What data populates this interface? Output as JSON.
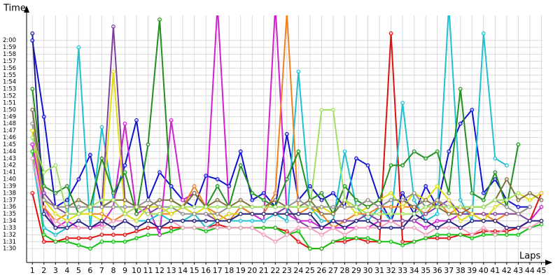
{
  "chart_data": {
    "type": "line",
    "y_label": "Time",
    "x_label": "Laps",
    "xlim": [
      0.5,
      45.7
    ],
    "ylim": [
      88,
      123
    ],
    "xticks": [
      1,
      2,
      3,
      4,
      5,
      6,
      7,
      8,
      9,
      10,
      11,
      12,
      13,
      14,
      15,
      16,
      17,
      18,
      19,
      20,
      21,
      22,
      23,
      24,
      25,
      26,
      27,
      28,
      29,
      30,
      31,
      32,
      33,
      34,
      35,
      36,
      37,
      38,
      39,
      40,
      41,
      42,
      43,
      44,
      45
    ],
    "yticks": [
      {
        "value": 90,
        "label": "1:30"
      },
      {
        "value": 91,
        "label": "1:31"
      },
      {
        "value": 92,
        "label": "1:32"
      },
      {
        "value": 93,
        "label": "1:33"
      },
      {
        "value": 94,
        "label": "1:34"
      },
      {
        "value": 95,
        "label": "1:35"
      },
      {
        "value": 96,
        "label": "1:36"
      },
      {
        "value": 97,
        "label": "1:37"
      },
      {
        "value": 98,
        "label": "1:38"
      },
      {
        "value": 99,
        "label": "1:39"
      },
      {
        "value": 100,
        "label": "1:40"
      },
      {
        "value": 101,
        "label": "1:41"
      },
      {
        "value": 102,
        "label": "1:42"
      },
      {
        "value": 103,
        "label": "1:43"
      },
      {
        "value": 104,
        "label": "1:44"
      },
      {
        "value": 105,
        "label": "1:45"
      },
      {
        "value": 106,
        "label": "1:46"
      },
      {
        "value": 107,
        "label": "1:47"
      },
      {
        "value": 108,
        "label": "1:48"
      },
      {
        "value": 109,
        "label": "1:49"
      },
      {
        "value": 110,
        "label": "1:50"
      },
      {
        "value": 111,
        "label": "1:51"
      },
      {
        "value": 112,
        "label": "1:52"
      },
      {
        "value": 113,
        "label": "1:53"
      },
      {
        "value": 114,
        "label": "1:54"
      },
      {
        "value": 115,
        "label": "1:55"
      },
      {
        "value": 116,
        "label": "1:56"
      },
      {
        "value": 117,
        "label": "1:57"
      },
      {
        "value": 118,
        "label": "1:58"
      },
      {
        "value": 119,
        "label": "1:59"
      },
      {
        "value": 120,
        "label": "2:00"
      }
    ],
    "grid": true,
    "series": [
      {
        "color": "#e01010",
        "values": [
          98,
          91,
          91,
          91.5,
          91.5,
          91.5,
          92,
          92,
          92,
          92.5,
          93,
          93,
          93,
          93,
          93,
          93,
          93.5,
          93,
          93,
          93,
          93,
          93,
          92.5,
          91,
          90,
          90,
          91,
          91,
          91.5,
          91,
          91,
          121,
          91,
          91,
          91.5,
          91.5,
          91.5,
          92,
          92,
          92.5,
          92.5,
          92.5,
          93,
          94,
          98
        ]
      },
      {
        "color": "#1010d0",
        "values": [
          120,
          109,
          96,
          97,
          100,
          103.5,
          96,
          97,
          102,
          108.5,
          97,
          101,
          99,
          97,
          96,
          100.5,
          100,
          99,
          104,
          97,
          98,
          96,
          106.5,
          97,
          99,
          97,
          98,
          96,
          103,
          102,
          97,
          94,
          98,
          95,
          99,
          96,
          104,
          108,
          110,
          98,
          100,
          97,
          96,
          96,
          null
        ]
      },
      {
        "color": "#10c010",
        "values": [
          104,
          92,
          91,
          91,
          90.5,
          90,
          91,
          91,
          91,
          91.5,
          92,
          92,
          92.5,
          93,
          93,
          92.5,
          93,
          93,
          93,
          93,
          93,
          93,
          92,
          92.5,
          90,
          90,
          91,
          91.5,
          91.5,
          91.5,
          91,
          91,
          90.5,
          91,
          91.5,
          92,
          92,
          92,
          91.5,
          92,
          92,
          92,
          92,
          93,
          93.5
        ]
      },
      {
        "color": "#d020d0",
        "values": [
          105,
          96,
          93,
          94,
          93,
          93,
          93.5,
          96,
          108,
          95,
          96,
          92,
          108.5,
          97,
          98,
          96,
          125,
          96,
          96,
          95,
          94,
          125,
          95,
          94,
          94,
          93,
          93,
          93,
          93,
          93,
          94,
          94,
          94,
          94,
          93,
          94,
          94,
          95,
          95,
          94,
          94,
          93,
          93,
          94,
          96
        ]
      },
      {
        "color": "#20c0d0",
        "values": [
          103,
          93,
          92,
          93,
          119,
          93,
          107.5,
          97,
          95,
          94,
          94,
          95,
          94,
          94,
          95,
          93,
          94,
          94,
          94,
          94,
          94,
          95,
          94,
          115.5,
          96,
          94,
          94,
          104,
          96,
          94,
          96,
          94,
          111,
          97,
          94,
          95,
          125,
          97,
          94,
          121,
          103,
          102,
          null,
          null,
          null
        ]
      },
      {
        "color": "#f08020",
        "values": [
          107,
          96,
          94,
          95,
          95,
          95,
          95,
          94,
          95,
          96,
          95,
          95,
          95,
          96,
          99,
          96,
          95,
          94,
          96,
          95,
          95,
          98,
          124,
          95,
          96,
          95,
          93,
          94,
          95,
          95,
          96,
          96,
          96,
          96,
          95,
          97,
          95,
          96,
          95,
          95,
          94,
          95,
          95,
          96,
          null
        ]
      },
      {
        "color": "#8040a0",
        "values": [
          110,
          98,
          96,
          95,
          95,
          96,
          96,
          122,
          97,
          96,
          95,
          96,
          95,
          96,
          95,
          95,
          94,
          95,
          95,
          95,
          95,
          95,
          96,
          94,
          93,
          93,
          94,
          94,
          94,
          95,
          94,
          94,
          94,
          94,
          95,
          96,
          97,
          95,
          95,
          95,
          95,
          95,
          95,
          94,
          94
        ]
      },
      {
        "color": "#e0e010",
        "values": [
          107,
          97,
          95,
          94,
          95,
          95,
          94,
          115.5,
          95,
          94,
          96,
          96,
          95,
          96,
          95,
          96,
          94,
          95,
          95,
          95,
          95,
          95,
          95,
          95,
          95,
          96,
          95,
          97,
          95,
          96,
          97,
          98,
          96,
          98,
          97,
          99,
          97,
          94,
          95,
          94,
          96,
          97,
          98,
          97,
          98
        ]
      },
      {
        "color": "#209020",
        "values": [
          113,
          99,
          98,
          99,
          95,
          96,
          103,
          98,
          101,
          95,
          105,
          123,
          97,
          96,
          98,
          96,
          99,
          96,
          102,
          98,
          97,
          96,
          100,
          104,
          97,
          98,
          95,
          99,
          97,
          96,
          97,
          102,
          102,
          104,
          103,
          104,
          98,
          113,
          98,
          97,
          101,
          96,
          105,
          null,
          null
        ]
      },
      {
        "color": "#807040",
        "values": [
          110,
          97,
          96,
          96,
          97,
          96,
          96,
          97,
          97,
          96,
          96,
          97,
          97,
          96,
          98,
          96,
          97,
          96,
          97,
          96,
          96,
          97,
          96,
          96,
          97,
          95,
          95,
          97,
          96,
          97,
          96,
          97,
          97,
          96,
          97,
          96,
          95,
          95,
          96,
          96,
          97,
          100,
          97,
          98,
          97
        ]
      },
      {
        "color": "#f0a0c0",
        "values": [
          103,
          95,
          94,
          93,
          93,
          93,
          93,
          94,
          94,
          93,
          94,
          93,
          94,
          93,
          93,
          93,
          93,
          93,
          93,
          93,
          92,
          91,
          92,
          93,
          93,
          92,
          93,
          92,
          93,
          93,
          93,
          94,
          93,
          93,
          92,
          93,
          93,
          93,
          92,
          93,
          92,
          93,
          93,
          93,
          94
        ]
      },
      {
        "color": "#202080",
        "values": [
          121,
          95,
          93,
          93,
          94,
          93,
          94,
          93,
          94,
          93,
          94,
          93,
          94,
          94,
          94,
          94,
          94,
          94,
          95,
          95,
          95,
          95,
          95,
          95,
          95,
          93,
          94,
          93,
          94,
          94,
          93,
          93,
          93,
          95,
          94,
          93,
          94,
          93,
          94,
          94,
          94,
          93,
          93,
          94,
          94
        ]
      },
      {
        "color": "#909090",
        "values": [
          108,
          97,
          96,
          96,
          96,
          96,
          96,
          96,
          96,
          96,
          97,
          96,
          96,
          95,
          95,
          95,
          95,
          96,
          96,
          96,
          96,
          96,
          96,
          97,
          96,
          96,
          96,
          96,
          96,
          97,
          96,
          97,
          97,
          98,
          96,
          97,
          96,
          96,
          96,
          96,
          97,
          96,
          95,
          96,
          null
        ]
      },
      {
        "color": "#a0e060",
        "values": [
          106,
          101,
          102,
          95,
          95,
          96,
          97,
          97,
          95,
          96,
          95,
          95,
          96,
          96,
          96,
          96,
          96,
          96,
          96,
          96,
          96,
          96,
          96,
          96,
          96,
          110,
          110,
          97,
          96,
          95,
          95,
          95,
          95,
          95,
          96,
          96,
          96,
          96,
          96,
          96,
          97,
          97,
          98,
          null,
          null
        ]
      }
    ]
  }
}
